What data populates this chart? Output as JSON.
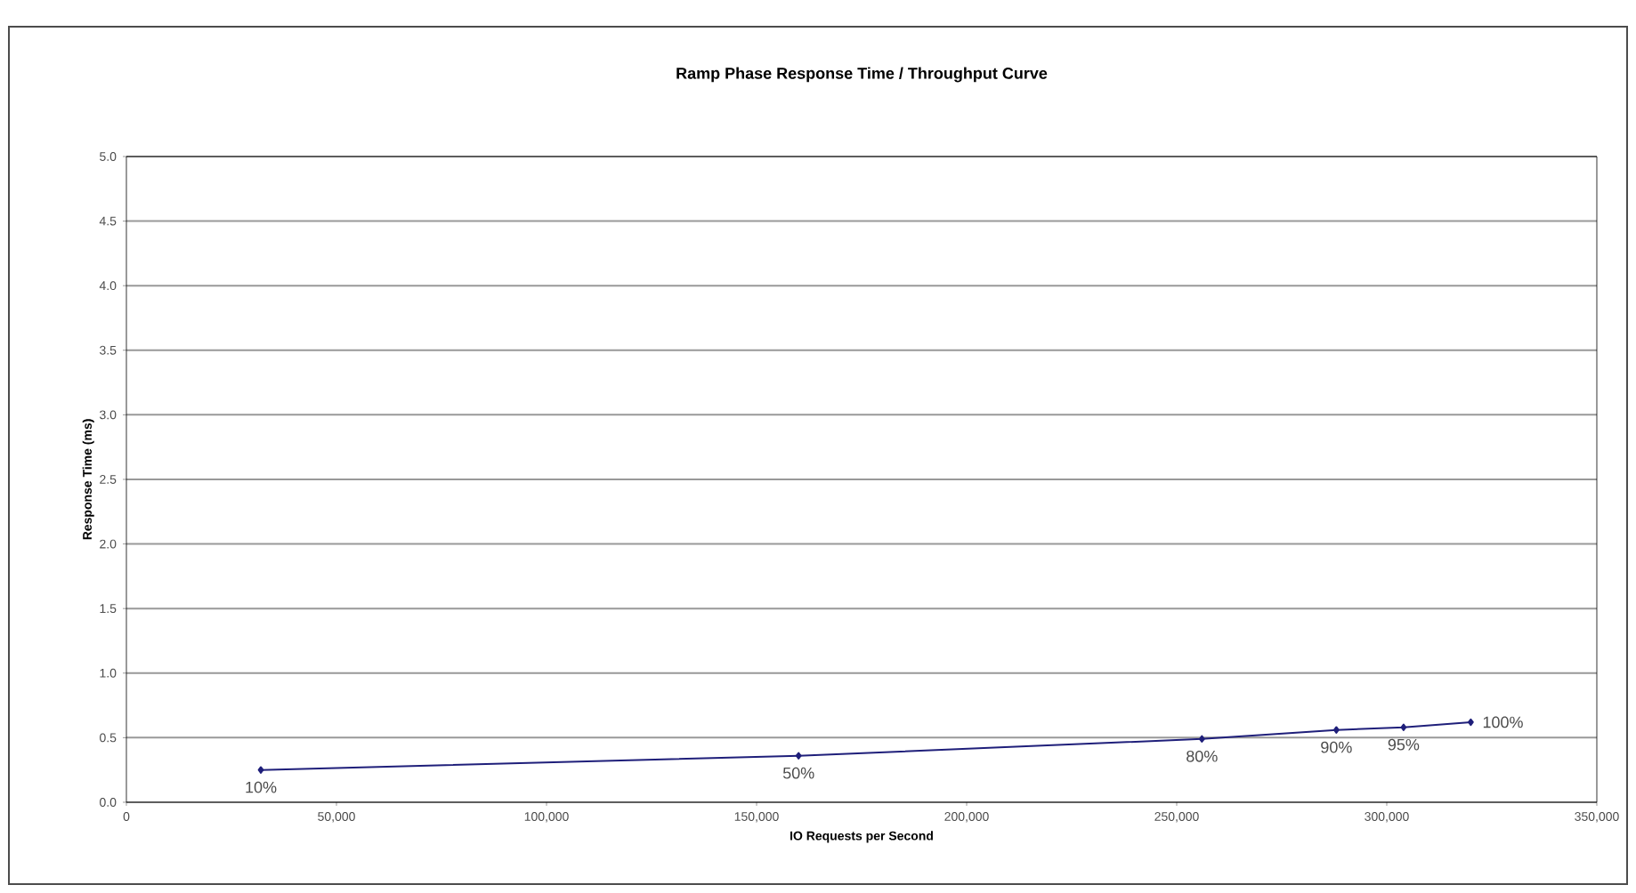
{
  "chart_data": {
    "type": "line",
    "title": "Ramp Phase Response Time / Throughput Curve",
    "xlabel": "IO Requests per Second",
    "ylabel": "Response Time (ms)",
    "x": [
      32000,
      160000,
      256000,
      288000,
      304000,
      320000
    ],
    "series": [
      {
        "color": "#1f1f7a",
        "values": [
          0.25,
          0.36,
          0.49,
          0.56,
          0.58,
          0.62
        ]
      }
    ],
    "xlim": [
      0,
      350000
    ],
    "ylim": [
      0,
      5
    ],
    "xticks": [
      0,
      {
        "value": 50000,
        "label": "50,000"
      },
      {
        "value": 100000,
        "label": "100,000"
      },
      {
        "value": 150000,
        "label": "150,000"
      },
      {
        "value": 200000,
        "label": "200,000"
      },
      {
        "value": 250000,
        "label": "250,000"
      },
      {
        "value": 300000,
        "label": "300,000"
      },
      {
        "value": 350000,
        "label": "350,000"
      }
    ],
    "yticks": [
      {
        "value": 0,
        "label": "0.0"
      },
      {
        "value": 0.5,
        "label": "0.5"
      },
      {
        "value": 1,
        "label": "1.0"
      },
      {
        "value": 1.5,
        "label": "1.5"
      },
      {
        "value": 2,
        "label": "2.0"
      },
      {
        "value": 2.5,
        "label": "2.5"
      },
      {
        "value": 3,
        "label": "3.0"
      },
      {
        "value": 3.5,
        "label": "3.5"
      },
      {
        "value": 4,
        "label": "4.0"
      },
      {
        "value": 4.5,
        "label": "4.5"
      },
      {
        "value": 5,
        "label": "5.0"
      }
    ],
    "annotations": [
      {
        "text": "10%",
        "x": 32000,
        "y": 0.25
      },
      {
        "text": "50%",
        "x": 160000,
        "y": 0.36
      },
      {
        "text": "80%",
        "x": 256000,
        "y": 0.49
      },
      {
        "text": "90%",
        "x": 288000,
        "y": 0.56
      },
      {
        "text": "95%",
        "x": 304000,
        "y": 0.58
      },
      {
        "text": "100%",
        "x": 320000,
        "y": 0.62
      }
    ],
    "grid": "y",
    "marker": "diamond",
    "line_style": "solid"
  }
}
